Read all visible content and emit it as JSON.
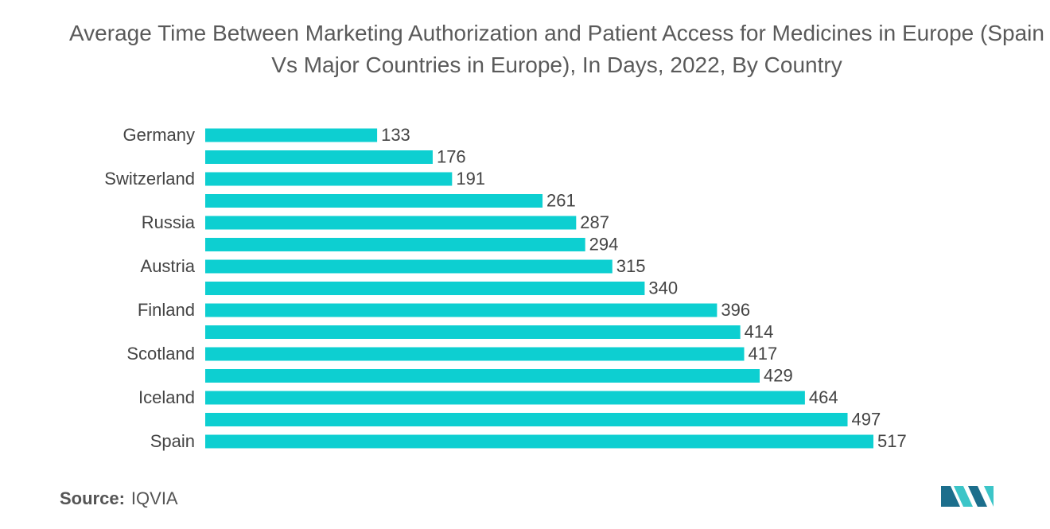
{
  "chart_data": {
    "type": "hbar",
    "title": "Average Time Between Marketing Authorization and Patient Access for Medicines in Europe (Spain Vs Major Countries in Europe), In Days, 2022, By Country",
    "categories": [
      "Germany",
      null,
      "Switzerland",
      null,
      "Russia",
      null,
      "Austria",
      null,
      "Finland",
      null,
      "Scotland",
      null,
      "Iceland",
      null,
      "Spain"
    ],
    "values": [
      133,
      176,
      191,
      261,
      287,
      294,
      315,
      340,
      396,
      414,
      417,
      429,
      464,
      497,
      517
    ],
    "color": "#0dcfd1",
    "source_label": "Source:",
    "source": "IQVIA"
  }
}
